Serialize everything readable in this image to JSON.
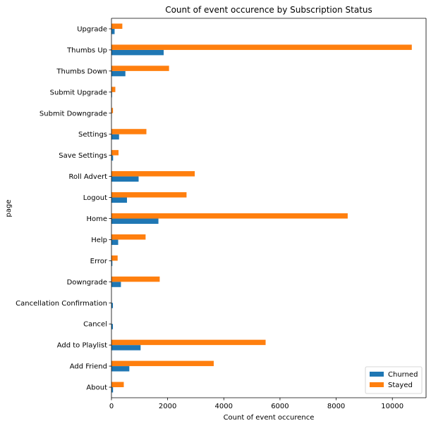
{
  "chart_data": {
    "type": "bar",
    "orientation": "horizontal",
    "title": "Count of event occurence by Subscription Status",
    "xlabel": "Count of event occurence",
    "ylabel": "page",
    "xlim": [
      0,
      11200
    ],
    "xticks": [
      0,
      2000,
      4000,
      6000,
      8000,
      10000
    ],
    "grid": false,
    "legend_position": "bottom-right",
    "categories": [
      "About",
      "Add Friend",
      "Add to Playlist",
      "Cancel",
      "Cancellation Confirmation",
      "Downgrade",
      "Error",
      "Help",
      "Home",
      "Logout",
      "Roll Advert",
      "Save Settings",
      "Settings",
      "Submit Downgrade",
      "Submit Upgrade",
      "Thumbs Down",
      "Thumbs Up",
      "Upgrade"
    ],
    "series": [
      {
        "name": "Churned",
        "color": "#1f77b4",
        "values": [
          56,
          636,
          1038,
          52,
          52,
          337,
          32,
          239,
          1672,
          553,
          967,
          58,
          270,
          9,
          21,
          496,
          1859,
          112
        ]
      },
      {
        "name": "Stayed",
        "color": "#ff7f0e",
        "values": [
          439,
          3641,
          5488,
          0,
          0,
          1718,
          220,
          1215,
          8410,
          2673,
          2966,
          252,
          1244,
          54,
          138,
          2050,
          10692,
          387
        ]
      }
    ]
  }
}
